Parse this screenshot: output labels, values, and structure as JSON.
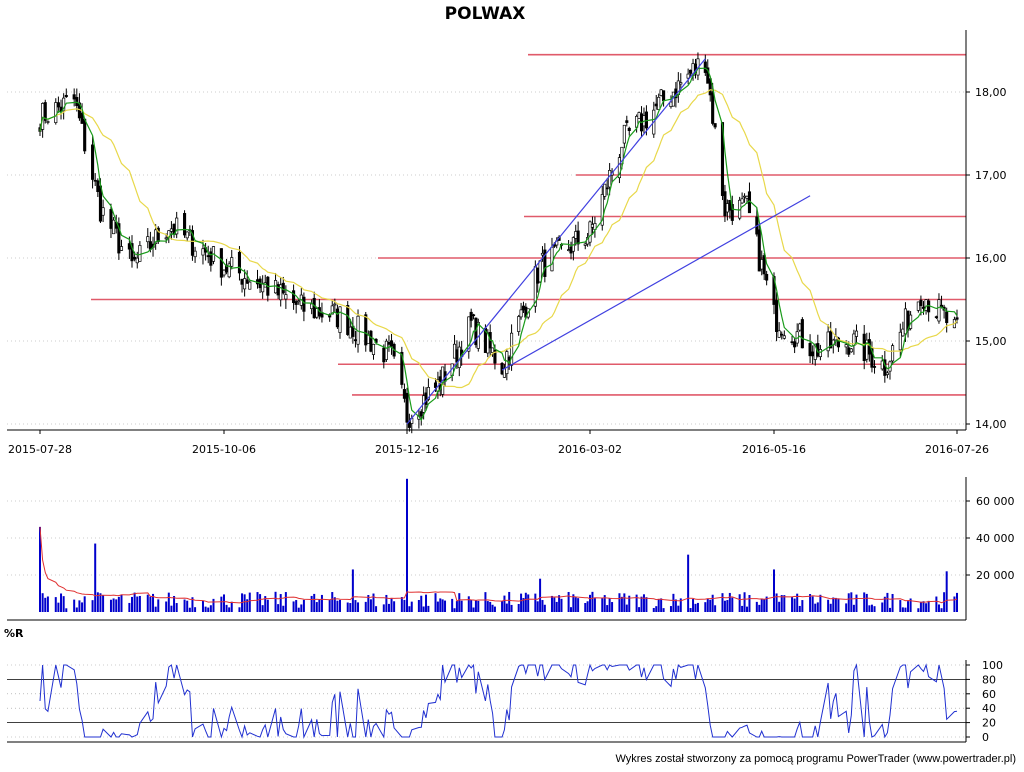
{
  "title": "POLWAX",
  "footer": "Wykres został stworzony za pomocą programu PowerTrader (www.powertrader.pl)",
  "colors": {
    "candle": "#000000",
    "ma_fast": "#1a9b1a",
    "ma_slow": "#e8d84a",
    "support_lines": "#e05a6a",
    "trend_lines": "#4040e0",
    "volume_bars": "#0000cc",
    "volume_avg": "#e03030",
    "wr_line": "#2030d0",
    "grid": "#999999"
  },
  "chart_data": [
    {
      "type": "candlestick",
      "name": "price",
      "title": "POLWAX",
      "x_tick_labels": [
        "2015-07-28",
        "2015-10-06",
        "2015-12-16",
        "2016-03-02",
        "2016-05-16",
        "2016-07-26"
      ],
      "y_tick_labels": [
        "14,00",
        "15,00",
        "16,00",
        "17,00",
        "18,00"
      ],
      "ylim": [
        14.0,
        18.4
      ],
      "grid": true,
      "horizontal_levels": [
        18.45,
        17.0,
        16.5,
        16.0,
        15.5,
        14.72,
        14.35
      ],
      "overlays": [
        "fast moving average",
        "slow moving average"
      ],
      "trend_lines": [
        {
          "from": [
            "2015-12-16",
            14.0
          ],
          "to": [
            "2016-04-18",
            18.4
          ]
        },
        {
          "from": [
            "2016-01-25",
            14.65
          ],
          "to": [
            "2016-05-30",
            16.75
          ]
        }
      ],
      "closes": [
        {
          "date": "2015-07-28",
          "value": 17.7
        },
        {
          "date": "2015-08-10",
          "value": 17.9
        },
        {
          "date": "2015-08-20",
          "value": 16.6
        },
        {
          "date": "2015-09-01",
          "value": 15.9
        },
        {
          "date": "2015-09-15",
          "value": 16.4
        },
        {
          "date": "2015-10-06",
          "value": 15.9
        },
        {
          "date": "2015-10-20",
          "value": 15.7
        },
        {
          "date": "2015-11-05",
          "value": 15.4
        },
        {
          "date": "2015-11-20",
          "value": 15.3
        },
        {
          "date": "2015-12-10",
          "value": 14.8
        },
        {
          "date": "2015-12-16",
          "value": 14.1
        },
        {
          "date": "2015-12-30",
          "value": 14.5
        },
        {
          "date": "2016-01-12",
          "value": 15.2
        },
        {
          "date": "2016-01-25",
          "value": 14.7
        },
        {
          "date": "2016-02-10",
          "value": 15.9
        },
        {
          "date": "2016-03-02",
          "value": 16.3
        },
        {
          "date": "2016-03-15",
          "value": 17.4
        },
        {
          "date": "2016-04-01",
          "value": 17.9
        },
        {
          "date": "2016-04-18",
          "value": 18.4
        },
        {
          "date": "2016-04-26",
          "value": 16.6
        },
        {
          "date": "2016-05-05",
          "value": 16.6
        },
        {
          "date": "2016-05-16",
          "value": 15.3
        },
        {
          "date": "2016-06-01",
          "value": 14.9
        },
        {
          "date": "2016-06-15",
          "value": 15.0
        },
        {
          "date": "2016-06-28",
          "value": 14.7
        },
        {
          "date": "2016-07-12",
          "value": 15.6
        },
        {
          "date": "2016-07-26",
          "value": 15.1
        }
      ]
    },
    {
      "type": "bar",
      "name": "volume",
      "y_tick_labels": [
        "20 000",
        "40 000",
        "60 000"
      ],
      "ylim": [
        0,
        70000
      ],
      "grid": true,
      "spikes": [
        {
          "date": "2015-07-28",
          "value": 46000
        },
        {
          "date": "2015-08-18",
          "value": 37000
        },
        {
          "date": "2015-11-25",
          "value": 23000
        },
        {
          "date": "2015-12-16",
          "value": 72000
        },
        {
          "date": "2016-02-10",
          "value": 18000
        },
        {
          "date": "2016-04-10",
          "value": 31000
        },
        {
          "date": "2016-05-16",
          "value": 23000
        },
        {
          "date": "2016-07-22",
          "value": 22000
        }
      ]
    },
    {
      "type": "line",
      "name": "%R",
      "title": "%R",
      "y_tick_labels": [
        "0",
        "20",
        "40",
        "60",
        "80",
        "100"
      ],
      "ylim": [
        0,
        100
      ],
      "reference_levels": [
        20,
        80
      ],
      "grid": true
    }
  ]
}
